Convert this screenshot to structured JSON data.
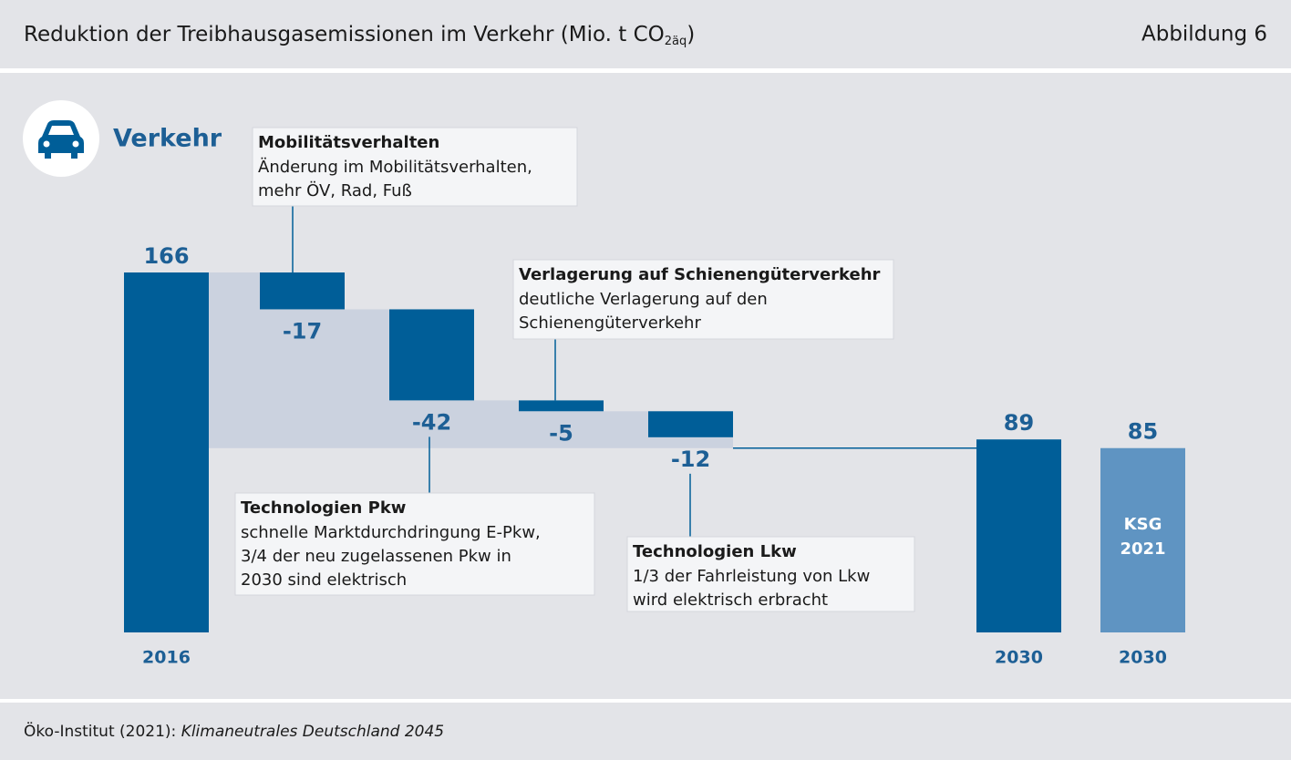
{
  "header": {
    "title": "Reduktion der Treibhausgasemissionen im Verkehr (Mio. t CO",
    "title_subscript": "2äq",
    "title_close": ")",
    "figure": "Abbildung 6"
  },
  "section": "Verkehr",
  "chart_data": {
    "type": "waterfall",
    "categories": [
      "2016",
      null,
      null,
      null,
      null,
      "2030",
      "2030"
    ],
    "values": [
      166,
      -17,
      -42,
      -5,
      -12,
      89,
      85
    ],
    "kinds": [
      "total",
      "delta",
      "delta",
      "delta",
      "delta",
      "total",
      "total"
    ],
    "colors": [
      "#005e98",
      "#005e98",
      "#005e98",
      "#005e98",
      "#005e98",
      "#005e98",
      "#5f94c2"
    ],
    "inner_labels": [
      null,
      null,
      null,
      null,
      null,
      null,
      [
        "KSG",
        "2021"
      ]
    ],
    "ylim": [
      0,
      166
    ],
    "annotations": [
      {
        "title": "Mobilitätsverhalten",
        "lines": [
          "Änderung im Mobilitätsverhalten,",
          "mehr ÖV, Rad, Fuß"
        ]
      },
      {
        "title": "Technologien Pkw",
        "lines": [
          "schnelle Marktdurchdringung E-Pkw,",
          "3/4 der neu zugelassenen Pkw in",
          "2030 sind elektrisch"
        ]
      },
      {
        "title": "Verlagerung auf Schienengüterverkehr",
        "lines": [
          "deutliche Verlagerung auf den",
          "Schienengüterverkehr"
        ]
      },
      {
        "title": "Technologien Lkw",
        "lines": [
          "1/3 der Fahrleistung von Lkw",
          "wird elektrisch erbracht"
        ]
      }
    ]
  },
  "source": {
    "text": "Öko-Institut (2021): ",
    "italic": "Klimaneutrales Deutschland 2045"
  }
}
